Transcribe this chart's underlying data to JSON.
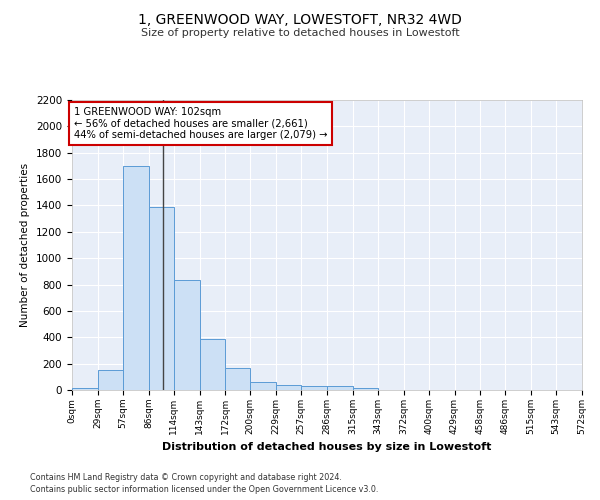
{
  "title": "1, GREENWOOD WAY, LOWESTOFT, NR32 4WD",
  "subtitle": "Size of property relative to detached houses in Lowestoft",
  "xlabel": "Distribution of detached houses by size in Lowestoft",
  "ylabel": "Number of detached properties",
  "bar_edges": [
    0,
    29,
    57,
    86,
    114,
    143,
    172,
    200,
    229,
    257,
    286,
    315,
    343,
    372,
    400,
    429,
    458,
    486,
    515,
    543,
    572
  ],
  "bar_values": [
    15,
    155,
    1700,
    1390,
    835,
    385,
    165,
    60,
    35,
    28,
    28,
    15,
    0,
    0,
    0,
    0,
    0,
    0,
    0,
    0
  ],
  "bar_color": "#cce0f5",
  "bar_edgecolor": "#5b9bd5",
  "property_size": 102,
  "property_label": "1 GREENWOOD WAY: 102sqm",
  "annotation_line1": "← 56% of detached houses are smaller (2,661)",
  "annotation_line2": "44% of semi-detached houses are larger (2,079) →",
  "vline_color": "#444444",
  "annotation_box_edgecolor": "#cc0000",
  "annotation_box_facecolor": "#ffffff",
  "ylim": [
    0,
    2200
  ],
  "yticks": [
    0,
    200,
    400,
    600,
    800,
    1000,
    1200,
    1400,
    1600,
    1800,
    2000,
    2200
  ],
  "background_color": "#e8eef8",
  "grid_color": "#ffffff",
  "fig_facecolor": "#ffffff",
  "footer_line1": "Contains HM Land Registry data © Crown copyright and database right 2024.",
  "footer_line2": "Contains public sector information licensed under the Open Government Licence v3.0."
}
